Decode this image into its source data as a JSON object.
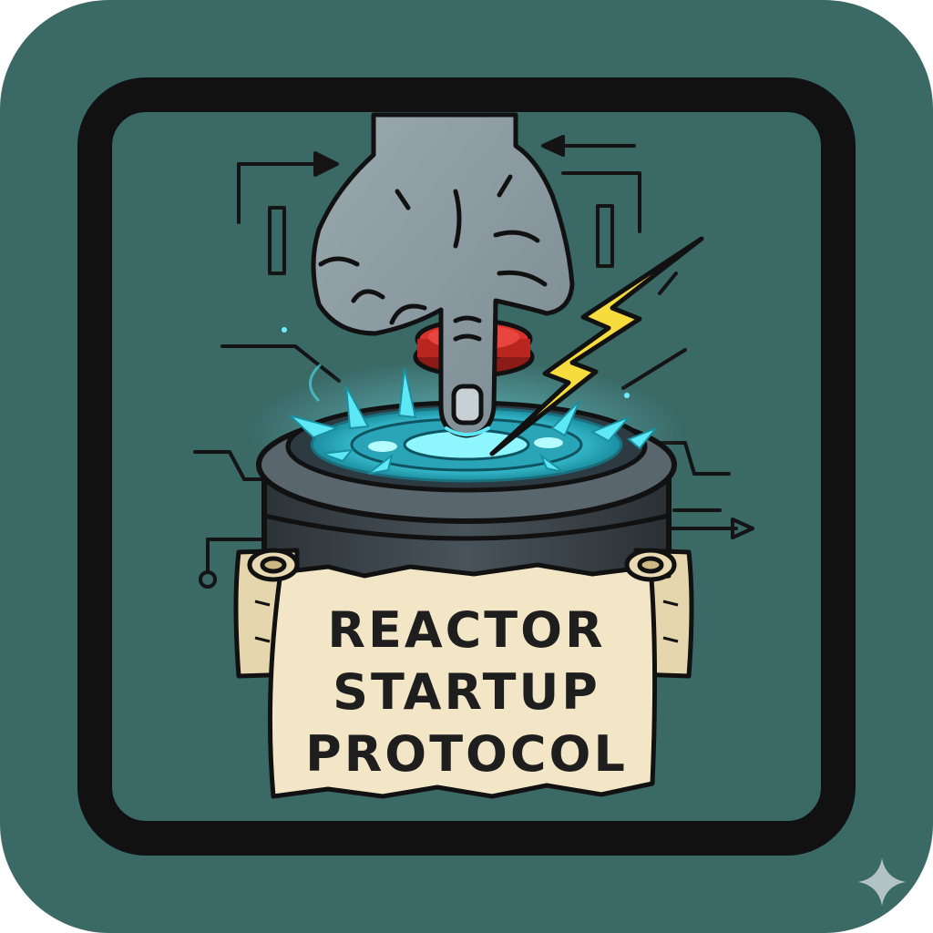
{
  "banner": {
    "lines": [
      "REACTOR",
      "STARTUP",
      "PROTOCOL"
    ]
  },
  "icons": {
    "hand": "pointing-hand-icon",
    "button": "red-push-button-icon",
    "lightning": "lightning-bolt-icon",
    "reactor": "reactor-core-icon",
    "corner_mark": "sparkle-icon"
  },
  "colors": {
    "background": "#3a6966",
    "frame": "#111111",
    "glow": "#4fe4f4",
    "bolt": "#f6dc3c",
    "button": "#d8322c",
    "scroll": "#f2e6c6",
    "hand": "#8b9ca2"
  }
}
